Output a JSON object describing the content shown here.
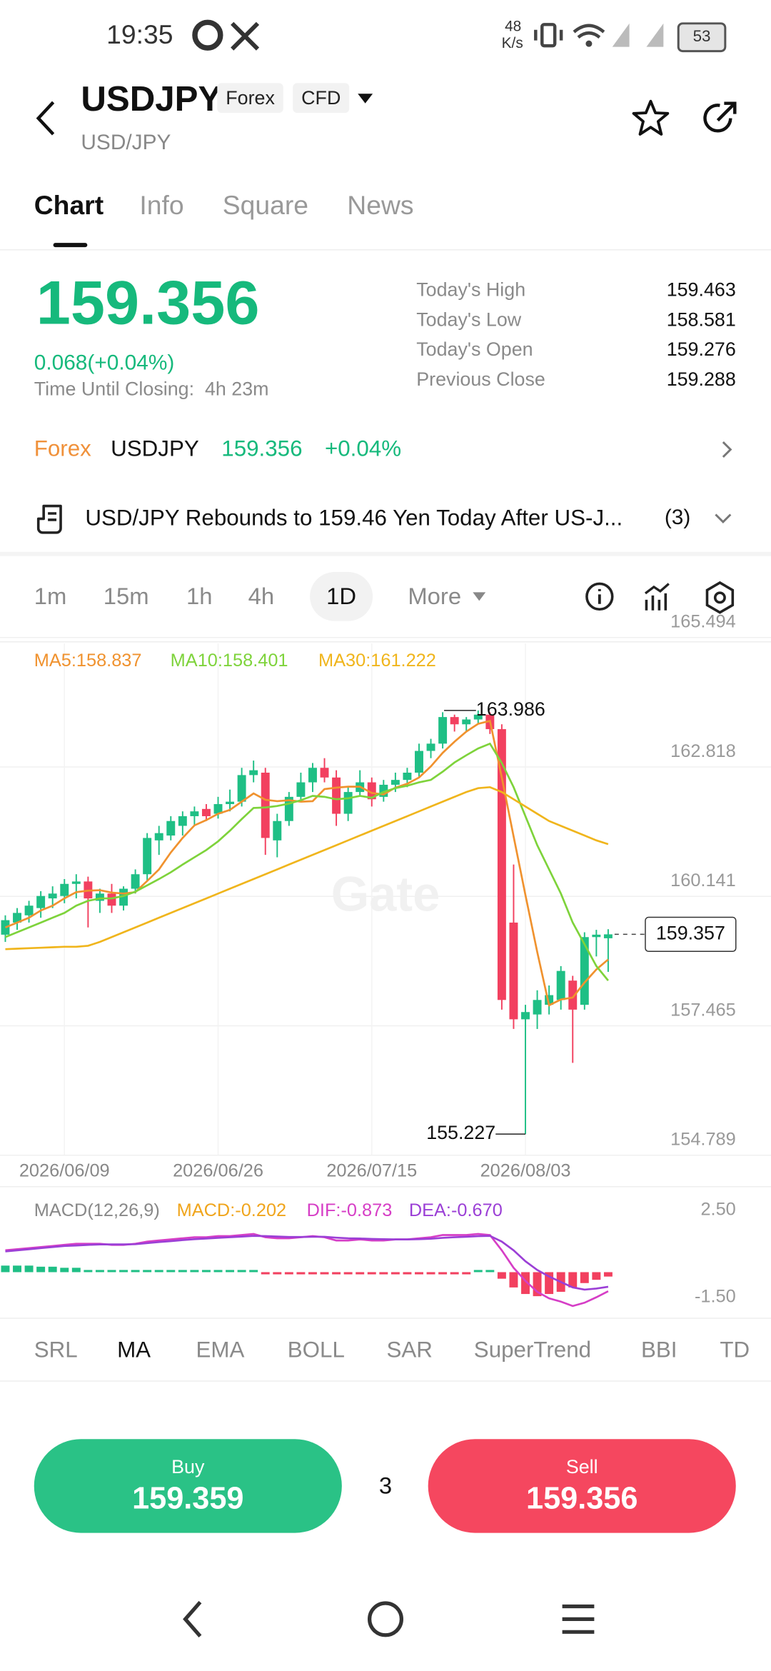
{
  "status_bar": {
    "time": "19:35",
    "net_speed": "48",
    "net_unit": "K/s",
    "battery": "53"
  },
  "header": {
    "symbol": "USDJPY",
    "tags": [
      "Forex",
      "CFD"
    ],
    "subtitle": "USD/JPY"
  },
  "tabs": [
    "Chart",
    "Info",
    "Square",
    "News"
  ],
  "quote": {
    "price": "159.356",
    "change": "0.068(+0.04%)",
    "closing": "Time Until Closing:  4h 23m",
    "stats": [
      {
        "label": "Today's High",
        "value": "159.463"
      },
      {
        "label": "Today's Low",
        "value": "158.581"
      },
      {
        "label": "Today's Open",
        "value": "159.276"
      },
      {
        "label": "Previous Close",
        "value": "159.288"
      }
    ]
  },
  "ticker": {
    "market": "Forex",
    "symbol": "USDJPY",
    "price": "159.356",
    "change": "+0.04%"
  },
  "news": {
    "headline": "USD/JPY Rebounds to 159.46 Yen Today After US-J...",
    "count": "(3)"
  },
  "intervals": [
    "1m",
    "15m",
    "1h",
    "4h",
    "1D",
    "More"
  ],
  "chart_data": [
    {
      "type": "candlestick",
      "up_color": "#1fbf85",
      "down_color": "#f2405f",
      "grid": true,
      "watermark": "Gate",
      "ylim": [
        154.789,
        165.494
      ],
      "yticks": [
        165.494,
        162.818,
        160.141,
        157.465,
        154.789
      ],
      "high_marker": 163.986,
      "low_marker": 155.227,
      "last_price": 159.357,
      "categories": [
        null,
        null,
        null,
        null,
        null,
        "2026/06/09",
        null,
        null,
        null,
        null,
        null,
        null,
        null,
        null,
        null,
        null,
        null,
        null,
        "2026/06/26",
        null,
        null,
        null,
        null,
        null,
        null,
        null,
        null,
        null,
        null,
        null,
        null,
        "2026/07/15",
        null,
        null,
        null,
        null,
        null,
        null,
        null,
        null,
        null,
        null,
        null,
        null,
        "2026/08/03",
        null,
        null,
        null,
        null,
        null,
        null,
        null
      ],
      "candles": [
        [
          159.35,
          159.75,
          159.2,
          159.65
        ],
        [
          159.6,
          159.9,
          159.45,
          159.8
        ],
        [
          159.75,
          160.05,
          159.6,
          159.95
        ],
        [
          159.9,
          160.25,
          159.7,
          160.15
        ],
        [
          160.1,
          160.35,
          159.9,
          160.2
        ],
        [
          160.15,
          160.5,
          160.0,
          160.4
        ],
        [
          160.4,
          160.6,
          160.1,
          160.45
        ],
        [
          160.45,
          160.55,
          159.5,
          160.1
        ],
        [
          160.05,
          160.3,
          159.8,
          160.2
        ],
        [
          160.2,
          160.4,
          159.8,
          159.95
        ],
        [
          159.95,
          160.35,
          159.85,
          160.3
        ],
        [
          160.3,
          160.7,
          160.2,
          160.6
        ],
        [
          160.6,
          161.45,
          160.45,
          161.35
        ],
        [
          161.3,
          161.6,
          161.0,
          161.45
        ],
        [
          161.4,
          161.8,
          161.3,
          161.7
        ],
        [
          161.6,
          161.9,
          161.4,
          161.8
        ],
        [
          161.8,
          162.0,
          161.6,
          161.9
        ],
        [
          161.95,
          162.05,
          161.7,
          161.8
        ],
        [
          161.85,
          162.2,
          161.75,
          162.05
        ],
        [
          162.05,
          162.35,
          161.9,
          162.1
        ],
        [
          162.1,
          162.8,
          162.0,
          162.65
        ],
        [
          162.65,
          162.95,
          162.5,
          162.75
        ],
        [
          162.7,
          162.8,
          161.0,
          161.35
        ],
        [
          161.3,
          161.85,
          160.95,
          161.7
        ],
        [
          161.7,
          162.3,
          161.6,
          162.2
        ],
        [
          162.2,
          162.7,
          162.1,
          162.5
        ],
        [
          162.5,
          162.9,
          162.3,
          162.8
        ],
        [
          162.8,
          163.0,
          162.5,
          162.6
        ],
        [
          162.6,
          162.75,
          161.6,
          161.85
        ],
        [
          161.85,
          162.4,
          161.7,
          162.3
        ],
        [
          162.3,
          162.75,
          162.2,
          162.5
        ],
        [
          162.5,
          162.6,
          162.0,
          162.15
        ],
        [
          162.2,
          162.55,
          162.1,
          162.45
        ],
        [
          162.45,
          162.7,
          162.3,
          162.55
        ],
        [
          162.55,
          162.8,
          162.4,
          162.7
        ],
        [
          162.7,
          163.3,
          162.6,
          163.15
        ],
        [
          163.15,
          163.4,
          163.0,
          163.3
        ],
        [
          163.3,
          163.95,
          163.2,
          163.85
        ],
        [
          163.85,
          163.9,
          163.55,
          163.7
        ],
        [
          163.7,
          163.85,
          163.55,
          163.8
        ],
        [
          163.8,
          163.986,
          163.7,
          163.9
        ],
        [
          163.9,
          163.95,
          163.5,
          163.6
        ],
        [
          163.6,
          163.7,
          157.8,
          158.0
        ],
        [
          159.6,
          160.8,
          157.4,
          157.6
        ],
        [
          157.6,
          157.9,
          155.227,
          157.75
        ],
        [
          157.7,
          158.2,
          157.4,
          158.0
        ],
        [
          157.9,
          158.3,
          157.7,
          158.1
        ],
        [
          158.0,
          158.7,
          157.8,
          158.6
        ],
        [
          158.4,
          158.5,
          156.7,
          157.8
        ],
        [
          157.9,
          159.4,
          157.8,
          159.3
        ],
        [
          159.3,
          159.45,
          158.9,
          159.35
        ],
        [
          159.276,
          159.463,
          158.581,
          159.357
        ]
      ],
      "series": [
        {
          "name": "MA5:158.837",
          "color": "#f0922e",
          "values": [
            159.5,
            159.6,
            159.7,
            159.85,
            159.95,
            160.1,
            160.23,
            160.26,
            160.27,
            160.22,
            160.2,
            160.23,
            160.46,
            160.7,
            161.05,
            161.35,
            161.61,
            161.72,
            161.85,
            161.93,
            162.1,
            162.27,
            162.14,
            162.11,
            162.13,
            162.1,
            162.11,
            162.36,
            162.39,
            162.41,
            162.41,
            162.28,
            162.25,
            162.39,
            162.47,
            162.6,
            162.83,
            163.11,
            163.34,
            163.55,
            163.71,
            163.77,
            162.6,
            161.38,
            160.17,
            158.99,
            157.89,
            158.01,
            158.05,
            158.36,
            158.63,
            158.837
          ]
        },
        {
          "name": "MA10:158.401",
          "color": "#7ed33b",
          "values": [
            159.3,
            159.4,
            159.5,
            159.6,
            159.7,
            159.8,
            159.95,
            160.05,
            160.1,
            160.1,
            160.15,
            160.24,
            160.37,
            160.5,
            160.64,
            160.8,
            160.95,
            161.1,
            161.28,
            161.5,
            161.74,
            161.97,
            161.98,
            162.01,
            162.06,
            162.13,
            162.22,
            162.2,
            162.15,
            162.17,
            162.22,
            162.18,
            162.3,
            162.38,
            162.43,
            162.5,
            162.55,
            162.72,
            162.91,
            163.06,
            163.2,
            163.3,
            162.9,
            162.4,
            161.8,
            161.2,
            160.7,
            160.2,
            159.6,
            159.15,
            158.7,
            158.401
          ]
        },
        {
          "name": "MA30:161.222",
          "color": "#f0b51c",
          "values": [
            159.05,
            159.06,
            159.07,
            159.08,
            159.09,
            159.1,
            159.1,
            159.12,
            159.2,
            159.3,
            159.4,
            159.5,
            159.6,
            159.7,
            159.8,
            159.9,
            160.0,
            160.1,
            160.2,
            160.3,
            160.4,
            160.5,
            160.6,
            160.7,
            160.8,
            160.9,
            161.0,
            161.1,
            161.2,
            161.3,
            161.4,
            161.5,
            161.6,
            161.7,
            161.8,
            161.9,
            162.0,
            162.1,
            162.2,
            162.3,
            162.38,
            162.4,
            162.3,
            162.15,
            162.0,
            161.85,
            161.7,
            161.6,
            161.5,
            161.4,
            161.3,
            161.222
          ]
        }
      ]
    },
    {
      "type": "macd",
      "title": "MACD(12,26,9)",
      "ylim": [
        -1.5,
        2.5
      ],
      "yticks": [
        {
          "value": 2.5,
          "label": "2.50"
        },
        {
          "value": -1.5,
          "label": "-1.50"
        }
      ],
      "histogram": {
        "name": "MACD:-0.202",
        "color": "#f0a51c",
        "up_color": "#1fbf85",
        "down_color": "#f2405f",
        "values": [
          0.3,
          0.3,
          0.3,
          0.25,
          0.25,
          0.2,
          0.2,
          0.1,
          0.1,
          0.1,
          0.1,
          0.1,
          0.1,
          0.1,
          0.1,
          0.1,
          0.1,
          0.1,
          0.1,
          0.1,
          0.1,
          0.1,
          -0.1,
          -0.1,
          -0.1,
          -0.1,
          -0.1,
          -0.1,
          -0.1,
          -0.1,
          -0.1,
          -0.1,
          -0.1,
          -0.1,
          -0.1,
          -0.1,
          -0.1,
          -0.1,
          -0.1,
          -0.1,
          0.1,
          0.1,
          -0.3,
          -0.7,
          -1.0,
          -1.1,
          -1.0,
          -0.9,
          -0.7,
          -0.5,
          -0.35,
          -0.202
        ]
      },
      "series": [
        {
          "name": "DIF:-0.873",
          "color": "#d63ec6",
          "values": [
            1.0,
            1.05,
            1.1,
            1.15,
            1.2,
            1.25,
            1.3,
            1.3,
            1.3,
            1.25,
            1.25,
            1.3,
            1.4,
            1.45,
            1.5,
            1.55,
            1.6,
            1.6,
            1.65,
            1.65,
            1.7,
            1.75,
            1.6,
            1.55,
            1.55,
            1.6,
            1.65,
            1.6,
            1.45,
            1.45,
            1.5,
            1.45,
            1.45,
            1.5,
            1.5,
            1.55,
            1.6,
            1.7,
            1.7,
            1.7,
            1.75,
            1.7,
            1.0,
            0.2,
            -0.4,
            -0.9,
            -1.2,
            -1.35,
            -1.55,
            -1.4,
            -1.15,
            -0.873
          ]
        },
        {
          "name": "DEA:-0.670",
          "color": "#9b3fd6",
          "values": [
            0.95,
            1.0,
            1.05,
            1.1,
            1.15,
            1.2,
            1.22,
            1.25,
            1.27,
            1.27,
            1.27,
            1.28,
            1.33,
            1.38,
            1.42,
            1.47,
            1.51,
            1.54,
            1.57,
            1.6,
            1.63,
            1.66,
            1.65,
            1.63,
            1.61,
            1.61,
            1.62,
            1.62,
            1.58,
            1.55,
            1.54,
            1.52,
            1.51,
            1.5,
            1.5,
            1.51,
            1.53,
            1.57,
            1.6,
            1.62,
            1.65,
            1.66,
            1.4,
            1.0,
            0.5,
            0.1,
            -0.2,
            -0.45,
            -0.7,
            -0.8,
            -0.75,
            -0.67
          ]
        }
      ]
    }
  ],
  "indicators": [
    "SRL",
    "MA",
    "EMA",
    "BOLL",
    "SAR",
    "SuperTrend",
    "BBI",
    "TD"
  ],
  "trade": {
    "buy_label": "Buy",
    "buy_price": "159.359",
    "spread": "3",
    "sell_label": "Sell",
    "sell_price": "159.356"
  }
}
